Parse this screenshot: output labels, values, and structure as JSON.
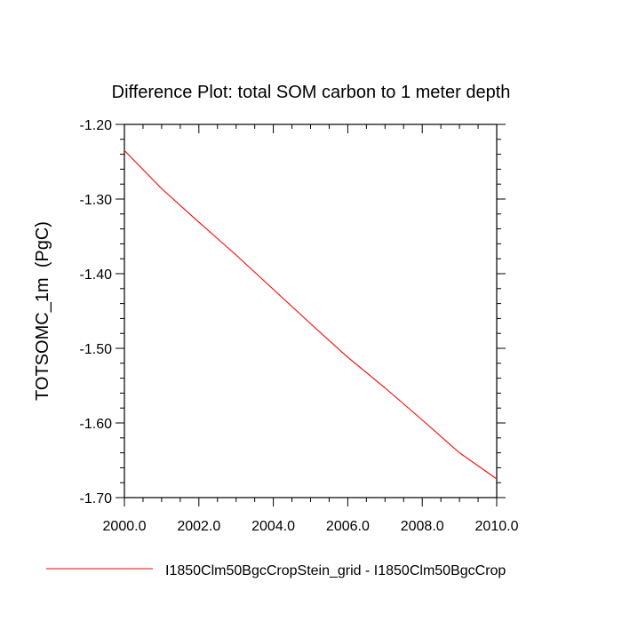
{
  "chart_data": {
    "type": "line",
    "title": "Difference Plot: total SOM carbon to 1 meter depth",
    "xlabel": "",
    "ylabel": "TOTSOMC_1m  (PgC)",
    "xlim": [
      2000.0,
      2010.0
    ],
    "ylim": [
      -1.7,
      -1.2
    ],
    "x_ticks": [
      2000.0,
      2002.0,
      2004.0,
      2006.0,
      2008.0,
      2010.0
    ],
    "x_tick_labels": [
      "2000.0",
      "2002.0",
      "2004.0",
      "2006.0",
      "2008.0",
      "2010.0"
    ],
    "y_ticks": [
      -1.2,
      -1.3,
      -1.4,
      -1.5,
      -1.6,
      -1.7
    ],
    "y_tick_labels": [
      "-1.20",
      "-1.30",
      "-1.40",
      "-1.50",
      "-1.60",
      "-1.70"
    ],
    "grid": false,
    "legend_position": "bottom",
    "series": [
      {
        "name": "I1850Clm50BgcCropStein_grid - I1850Clm50BgcCrop",
        "color": "#ff0000",
        "x": [
          2000,
          2001,
          2002,
          2003,
          2004,
          2005,
          2006,
          2007,
          2008,
          2009,
          2010
        ],
        "y": [
          -1.235,
          -1.286,
          -1.331,
          -1.375,
          -1.421,
          -1.467,
          -1.512,
          -1.553,
          -1.596,
          -1.64,
          -1.675
        ]
      }
    ]
  }
}
